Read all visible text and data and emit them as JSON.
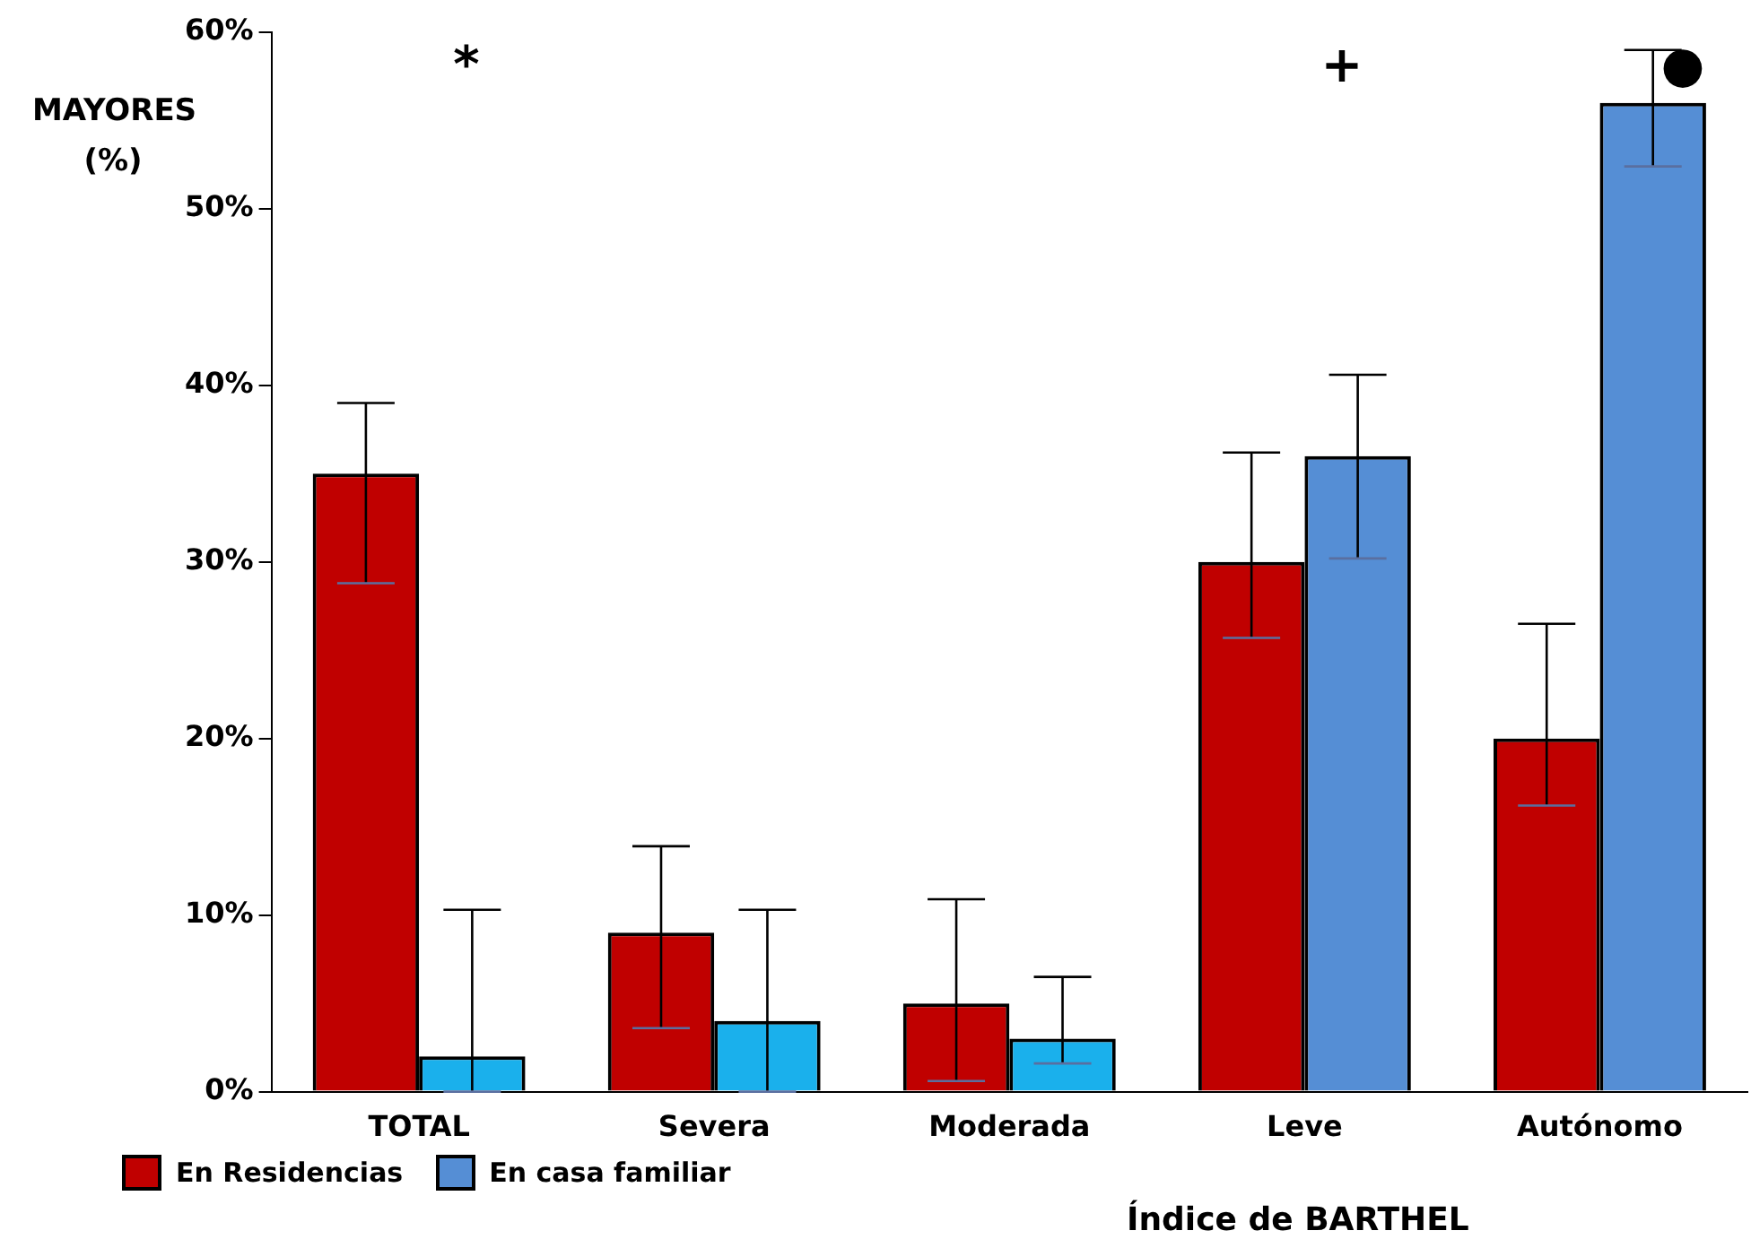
{
  "chart_data": {
    "type": "bar",
    "xlabel": "Índice de BARTHEL",
    "ylabel": "MAYORES (%)",
    "categories": [
      "TOTAL",
      "Severa",
      "Moderada",
      "Leve",
      "Autónomo"
    ],
    "series": [
      {
        "name": "En Residencias",
        "color": "#c00000",
        "values": [
          35,
          9,
          5,
          30,
          20
        ],
        "errors": [
          [
            28.8,
            39
          ],
          [
            3.6,
            13.9
          ],
          [
            0.6,
            10.9
          ],
          [
            25.7,
            36.2
          ],
          [
            16.2,
            26.5
          ]
        ]
      },
      {
        "name": "En casa familiar",
        "color": "#558ed5",
        "colors": [
          "#1ab0ec",
          "#1ab0ec",
          "#1ab0ec",
          "#558ed5",
          "#558ed5"
        ],
        "values": [
          2,
          4,
          3,
          36,
          56
        ],
        "errors": [
          [
            0,
            10.3
          ],
          [
            0,
            10.3
          ],
          [
            1.6,
            6.5
          ],
          [
            30.2,
            40.6
          ],
          [
            52.4,
            59
          ]
        ]
      }
    ],
    "ylim": [
      0,
      60
    ],
    "yticks": [
      {
        "value": 0,
        "label": "0%"
      },
      {
        "value": 10,
        "label": "10%"
      },
      {
        "value": 20,
        "label": "20%"
      },
      {
        "value": 30,
        "label": "30%"
      },
      {
        "value": 40,
        "label": "40%"
      },
      {
        "value": 50,
        "label": "50%"
      },
      {
        "value": 60,
        "label": "60%"
      }
    ],
    "annotations": [
      "*",
      "+",
      "●"
    ],
    "grid": false,
    "legend": "bottom left"
  }
}
